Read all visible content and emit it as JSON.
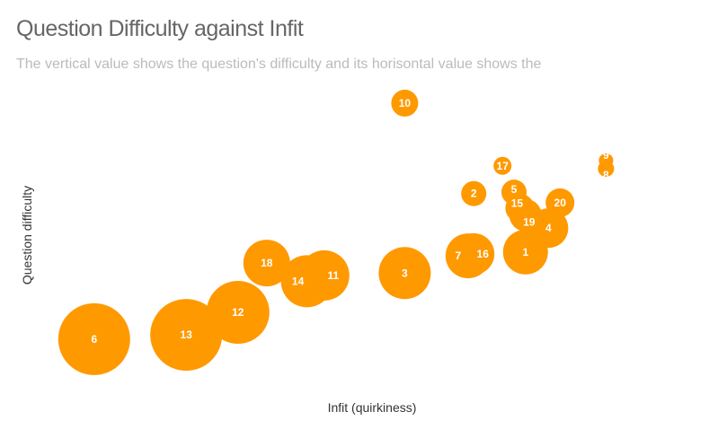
{
  "chart_data": {
    "type": "bubble",
    "title": "Question Difficulty against Infit",
    "subtitle": "The vertical value shows the question's difficulty and its horisontal value shows the",
    "xlabel": "Infit (quirkiness)",
    "ylabel": "Question difficulty",
    "xlim": [
      0.5,
      1.5
    ],
    "ylim": [
      -3,
      3
    ],
    "grid": false,
    "color": "#ff9900",
    "points": [
      {
        "label": "6",
        "x": 0.57,
        "y": -2.21,
        "size": 16
      },
      {
        "label": "13",
        "x": 0.73,
        "y": -2.12,
        "size": 16
      },
      {
        "label": "12",
        "x": 0.82,
        "y": -1.65,
        "size": 12.25
      },
      {
        "label": "18",
        "x": 0.87,
        "y": -0.62,
        "size": 6.76
      },
      {
        "label": "14",
        "x": 0.94,
        "y": -1.0,
        "size": 8.41
      },
      {
        "label": "11",
        "x": 0.97,
        "y": -0.88,
        "size": 7.84
      },
      {
        "label": "3",
        "x": 1.11,
        "y": -0.83,
        "size": 8.41
      },
      {
        "label": "7",
        "x": 1.22,
        "y": -0.47,
        "size": 6.25
      },
      {
        "label": "16",
        "x": 1.23,
        "y": -0.43,
        "size": 5.29
      },
      {
        "label": "1",
        "x": 1.32,
        "y": -0.39,
        "size": 6.25
      },
      {
        "label": "4",
        "x": 1.36,
        "y": 0.11,
        "size": 4.84
      },
      {
        "label": "19",
        "x": 1.32,
        "y": 0.38,
        "size": 3.24
      },
      {
        "label": "15",
        "x": 1.31,
        "y": 0.53,
        "size": 2.56
      },
      {
        "label": "5",
        "x": 1.3,
        "y": 0.86,
        "size": 1.96
      },
      {
        "label": "20",
        "x": 1.38,
        "y": 0.64,
        "size": 2.56
      },
      {
        "label": "2",
        "x": 1.23,
        "y": 0.83,
        "size": 1.96
      },
      {
        "label": "17",
        "x": 1.28,
        "y": 1.41,
        "size": 1.0
      },
      {
        "label": "10",
        "x": 1.11,
        "y": 2.72,
        "size": 2.25
      },
      {
        "label": "9",
        "x": 1.46,
        "y": 1.52,
        "size": 0.64
      },
      {
        "label": "8",
        "x": 1.46,
        "y": 1.35,
        "size": 0.81
      }
    ]
  }
}
